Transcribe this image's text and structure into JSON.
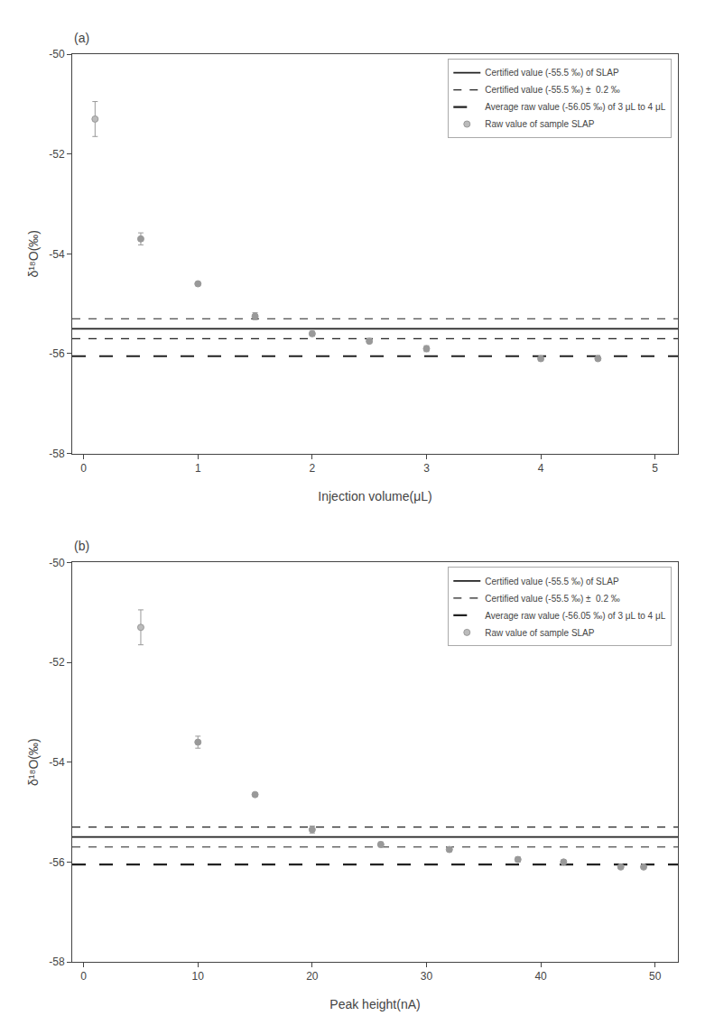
{
  "chart_data": [
    {
      "type": "scatter",
      "title": "(a)",
      "xlabel": "Injection volume(μL)",
      "ylabel": "δ¹⁸O(‰)",
      "xlim": [
        -0.1,
        5.2
      ],
      "xticks": [
        0,
        1,
        2,
        3,
        4,
        5
      ],
      "ylim": [
        -58,
        -50
      ],
      "yticks": [
        -58,
        -56,
        -54,
        -52,
        -50
      ],
      "grid": false,
      "legend": "upper right",
      "series": [
        {
          "name": "Certified value (-55.5 ‰) of SLAP",
          "type": "hline",
          "line_style": "solid",
          "color": "#222222",
          "values": [
            -55.5
          ]
        },
        {
          "name": "Certified value (-55.5 ‰) ±  0.2 ‰",
          "type": "hline",
          "line_style": "dash",
          "color": "#222222",
          "values": [
            -55.3,
            -55.7
          ]
        },
        {
          "name": "Average raw value (-56.05 ‰) of 3 μL to 4 μL",
          "type": "hline",
          "line_style": "longdash",
          "color": "#222222",
          "values": [
            -56.05
          ]
        },
        {
          "name": "Raw value of sample SLAP",
          "type": "scatter",
          "marker": "circle",
          "color": "#999999",
          "colors": [
            "#bbbbbb",
            "#999999",
            "#999999",
            "#999999",
            "#999999",
            "#999999",
            "#999999",
            "#999999",
            "#999999"
          ],
          "x": [
            0.1,
            0.5,
            1.0,
            1.5,
            2.0,
            2.5,
            3.0,
            4.0,
            4.5
          ],
          "values": [
            -51.3,
            -53.7,
            -54.6,
            -55.25,
            -55.6,
            -55.75,
            -55.9,
            -56.1,
            -56.1
          ],
          "yerr": [
            0.35,
            0.12,
            0.0,
            0.07,
            0.05,
            0.04,
            0.06,
            0.04,
            0.03
          ]
        }
      ]
    },
    {
      "type": "scatter",
      "title": "(b)",
      "xlabel": "Peak height(nA)",
      "ylabel": "δ¹⁸O(‰)",
      "xlim": [
        -1,
        52
      ],
      "xticks": [
        0,
        10,
        20,
        30,
        40,
        50
      ],
      "ylim": [
        -58,
        -50
      ],
      "yticks": [
        -58,
        -56,
        -54,
        -52,
        -50
      ],
      "grid": false,
      "legend": "upper right",
      "series": [
        {
          "name": "Certified value (-55.5 ‰) of SLAP",
          "type": "hline",
          "line_style": "solid",
          "color": "#222222",
          "values": [
            -55.5
          ]
        },
        {
          "name": "Certified value (-55.5 ‰) ±  0.2 ‰",
          "type": "hline",
          "line_style": "dash",
          "color": "#222222",
          "values": [
            -55.3,
            -55.7
          ]
        },
        {
          "name": "Average raw value (-56.05 ‰) of 3 μL to 4 μL",
          "type": "hline",
          "line_style": "longdash",
          "color": "#222222",
          "values": [
            -56.05
          ]
        },
        {
          "name": "Raw value of sample SLAP",
          "type": "scatter",
          "marker": "circle",
          "color": "#999999",
          "colors": [
            "#bbbbbb",
            "#999999",
            "#999999",
            "#999999",
            "#999999",
            "#999999",
            "#999999",
            "#999999",
            "#999999",
            "#999999"
          ],
          "x": [
            5,
            10,
            15,
            20,
            26,
            32,
            38,
            42,
            47,
            49
          ],
          "values": [
            -51.3,
            -53.6,
            -54.65,
            -55.35,
            -55.65,
            -55.75,
            -55.95,
            -56.0,
            -56.1,
            -56.1
          ],
          "yerr": [
            0.35,
            0.12,
            0.0,
            0.07,
            0.05,
            0.04,
            0.05,
            0.04,
            0.03,
            0.02
          ]
        }
      ]
    }
  ]
}
